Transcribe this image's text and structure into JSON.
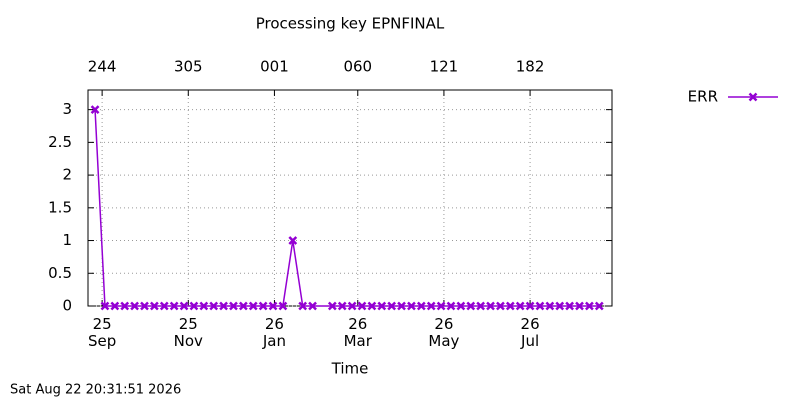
{
  "chart_data": {
    "type": "line",
    "title": "Processing key EPNFINAL",
    "xlabel": "Time",
    "footer": "Sat Aug 22 20:31:51 2026",
    "x": [
      "2025-08-27",
      "2025-09-03",
      "2025-09-10",
      "2025-09-17",
      "2025-09-24",
      "2025-10-01",
      "2025-10-08",
      "2025-10-15",
      "2025-10-22",
      "2025-10-29",
      "2025-11-05",
      "2025-11-12",
      "2025-11-19",
      "2025-11-26",
      "2025-12-03",
      "2025-12-10",
      "2025-12-17",
      "2025-12-24",
      "2025-12-31",
      "2026-01-07",
      "2026-01-14",
      "2026-01-21",
      "2026-01-28",
      "2026-02-11",
      "2026-02-18",
      "2026-02-25",
      "2026-03-04",
      "2026-03-11",
      "2026-03-18",
      "2026-03-25",
      "2026-04-01",
      "2026-04-08",
      "2026-04-15",
      "2026-04-22",
      "2026-04-29",
      "2026-05-06",
      "2026-05-13",
      "2026-05-20",
      "2026-05-27",
      "2026-06-03",
      "2026-06-10",
      "2026-06-17",
      "2026-06-24",
      "2026-07-01",
      "2026-07-08",
      "2026-07-15",
      "2026-07-22",
      "2026-07-29",
      "2026-08-05",
      "2026-08-12",
      "2026-08-19"
    ],
    "series": [
      {
        "name": "ERR",
        "color": "#9400d3",
        "values": [
          3,
          0,
          0,
          0,
          0,
          0,
          0,
          0,
          0,
          0,
          0,
          0,
          0,
          0,
          0,
          0,
          0,
          0,
          0,
          0,
          1,
          0,
          0,
          0,
          0,
          0,
          0,
          0,
          0,
          0,
          0,
          0,
          0,
          0,
          0,
          0,
          0,
          0,
          0,
          0,
          0,
          0,
          0,
          0,
          0,
          0,
          0,
          0,
          0,
          0,
          0
        ]
      }
    ],
    "xlim": [
      "2025-08-22",
      "2026-08-28"
    ],
    "xticks": [
      {
        "value": "2025-09-01",
        "label": "25\nSep"
      },
      {
        "value": "2025-11-01",
        "label": "25\nNov"
      },
      {
        "value": "2026-01-01",
        "label": "26\nJan"
      },
      {
        "value": "2026-03-01",
        "label": "26\nMar"
      },
      {
        "value": "2026-05-01",
        "label": "26\nMay"
      },
      {
        "value": "2026-07-01",
        "label": "26\nJul"
      }
    ],
    "x2ticks": [
      {
        "value": "2025-09-01",
        "label": "244"
      },
      {
        "value": "2025-11-01",
        "label": "305"
      },
      {
        "value": "2026-01-01",
        "label": "001"
      },
      {
        "value": "2026-03-01",
        "label": "060"
      },
      {
        "value": "2026-05-01",
        "label": "121"
      },
      {
        "value": "2026-07-01",
        "label": "182"
      }
    ],
    "ylim": [
      0,
      3.3
    ],
    "yticks": [
      0,
      0.5,
      1,
      1.5,
      2,
      2.5,
      3
    ],
    "grid": true,
    "legend": "outside-right"
  }
}
